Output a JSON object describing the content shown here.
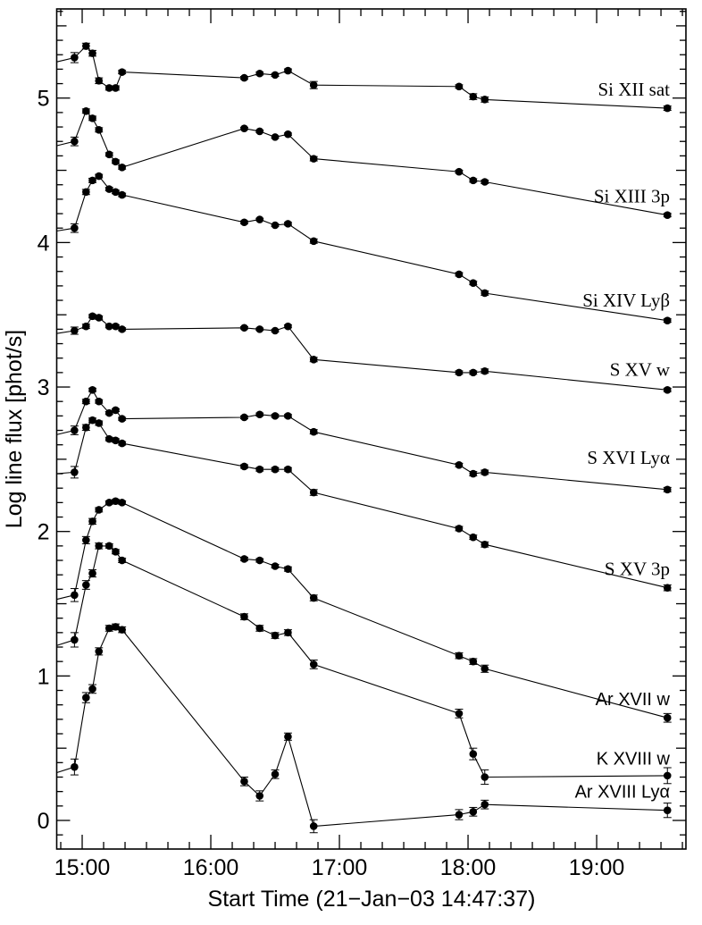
{
  "chart_data": {
    "type": "line",
    "title": "",
    "xlabel": "Start Time (21−Jan−03 14:47:37)",
    "ylabel": "Log line flux [phot/s]",
    "background_color": "#ffffff",
    "line_color": "#000000",
    "marker": "filled-circle",
    "error_bars": true,
    "grid": false,
    "legend_position": "labels-next-to-curves-right",
    "x_axis": {
      "unit": "time of day (decimal hours)",
      "range_hours": [
        14.802,
        19.694
      ],
      "minor_tick_minutes": 10,
      "ticks": [
        {
          "hour": 15,
          "label": "15:00"
        },
        {
          "hour": 16,
          "label": "16:00"
        },
        {
          "hour": 17,
          "label": "17:00"
        },
        {
          "hour": 18,
          "label": "18:00"
        },
        {
          "hour": 19,
          "label": "19:00"
        }
      ]
    },
    "y_axis": {
      "range": [
        -0.198,
        5.617
      ],
      "minor_tick": 0.1,
      "ticks": [
        {
          "value": 0,
          "label": "0"
        },
        {
          "value": 1,
          "label": "1"
        },
        {
          "value": 2,
          "label": "2"
        },
        {
          "value": 3,
          "label": "3"
        },
        {
          "value": 4,
          "label": "4"
        },
        {
          "value": 5,
          "label": "5"
        }
      ]
    },
    "x_hours": [
      14.8,
      14.94,
      15.03,
      15.08,
      15.13,
      15.21,
      15.26,
      15.31,
      16.26,
      16.38,
      16.5,
      16.6,
      16.8,
      17.93,
      18.04,
      18.13,
      19.55
    ],
    "x_times": [
      "14:48",
      "14:57",
      "15:02",
      "15:05",
      "15:08",
      "15:13",
      "15:16",
      "15:19",
      "16:16",
      "16:23",
      "16:30",
      "16:36",
      "16:48",
      "17:56",
      "18:02",
      "18:08",
      "19:33"
    ],
    "line_starts_at_frame_edge": true,
    "series": [
      {
        "name": "Si XII sat",
        "label_text": "Si XII sat",
        "label_style": "serif",
        "label_flux": 5.06,
        "values": [
          5.25,
          5.28,
          5.36,
          5.31,
          5.12,
          5.07,
          5.07,
          5.18,
          5.14,
          5.17,
          5.16,
          5.19,
          5.09,
          5.08,
          5.01,
          4.99,
          4.93
        ],
        "errors": [
          0,
          0.035,
          0.02,
          0.02,
          0.02,
          0.015,
          0.015,
          0.012,
          0.01,
          0.01,
          0.01,
          0.012,
          0.025,
          0.012,
          0.02,
          0.018,
          0.015
        ]
      },
      {
        "name": "Si XIII 3p",
        "label_text": "Si XIII 3p",
        "label_style": "serif",
        "label_flux": 4.32,
        "values": [
          4.67,
          4.7,
          4.91,
          4.86,
          4.78,
          4.61,
          4.56,
          4.52,
          4.79,
          4.77,
          4.73,
          4.75,
          4.58,
          4.49,
          4.43,
          4.42,
          4.19
        ],
        "errors": [
          0,
          0.03,
          0.015,
          0.015,
          0.015,
          0.012,
          0.012,
          0.012,
          0.008,
          0.008,
          0.008,
          0.008,
          0.015,
          0.01,
          0.012,
          0.012,
          0.012
        ]
      },
      {
        "name": "Si XIV Lyβ",
        "label_text": "Si XIV Lyβ",
        "label_style": "serif",
        "label_flux": 3.6,
        "values": [
          4.08,
          4.1,
          4.35,
          4.43,
          4.46,
          4.37,
          4.35,
          4.33,
          4.14,
          4.16,
          4.12,
          4.13,
          4.01,
          3.78,
          3.72,
          3.65,
          3.46
        ],
        "errors": [
          0,
          0.03,
          0.018,
          0.015,
          0.012,
          0.012,
          0.012,
          0.012,
          0.01,
          0.008,
          0.008,
          0.01,
          0.015,
          0.012,
          0.012,
          0.015,
          0.012
        ]
      },
      {
        "name": "S XV w",
        "label_text": "S XV w",
        "label_style": "serif",
        "label_flux": 3.12,
        "values": [
          3.37,
          3.39,
          3.42,
          3.49,
          3.48,
          3.42,
          3.42,
          3.4,
          3.41,
          3.4,
          3.39,
          3.42,
          3.19,
          3.1,
          3.1,
          3.11,
          2.98
        ],
        "errors": [
          0,
          0.025,
          0.015,
          0.012,
          0.012,
          0.01,
          0.01,
          0.01,
          0.008,
          0.008,
          0.008,
          0.01,
          0.015,
          0.012,
          0.012,
          0.015,
          0.012
        ]
      },
      {
        "name": "S XVI Lyα",
        "label_text": "S XVI Lyα",
        "label_style": "serif",
        "label_flux": 2.51,
        "values": [
          2.67,
          2.7,
          2.9,
          2.98,
          2.9,
          2.82,
          2.84,
          2.78,
          2.79,
          2.81,
          2.8,
          2.8,
          2.69,
          2.46,
          2.4,
          2.41,
          2.29
        ],
        "errors": [
          0,
          0.03,
          0.015,
          0.012,
          0.012,
          0.01,
          0.01,
          0.01,
          0.01,
          0.01,
          0.01,
          0.01,
          0.015,
          0.012,
          0.015,
          0.015,
          0.015
        ]
      },
      {
        "name": "S XV 3p",
        "label_text": "S XV 3p",
        "label_style": "serif",
        "label_flux": 1.74,
        "values": [
          2.4,
          2.41,
          2.72,
          2.77,
          2.75,
          2.64,
          2.63,
          2.61,
          2.45,
          2.43,
          2.43,
          2.43,
          2.27,
          2.02,
          1.96,
          1.91,
          1.61
        ],
        "errors": [
          0,
          0.04,
          0.02,
          0.015,
          0.015,
          0.012,
          0.012,
          0.012,
          0.012,
          0.012,
          0.012,
          0.012,
          0.02,
          0.015,
          0.015,
          0.018,
          0.02
        ]
      },
      {
        "name": "Ar XVII w",
        "label_text": "Ar XVII w",
        "label_style": "sans",
        "label_flux": 0.84,
        "values": [
          1.53,
          1.56,
          1.94,
          2.07,
          2.15,
          2.2,
          2.21,
          2.2,
          1.81,
          1.8,
          1.76,
          1.74,
          1.54,
          1.14,
          1.1,
          1.05,
          0.71
        ],
        "errors": [
          0,
          0.045,
          0.025,
          0.02,
          0.015,
          0.012,
          0.012,
          0.012,
          0.012,
          0.012,
          0.012,
          0.015,
          0.02,
          0.02,
          0.02,
          0.025,
          0.03
        ]
      },
      {
        "name": "K XVIII w",
        "label_text": "K XVIII w",
        "label_style": "sans",
        "label_flux": 0.43,
        "values": [
          1.21,
          1.25,
          1.63,
          1.71,
          1.9,
          1.9,
          1.86,
          1.8,
          1.41,
          1.33,
          1.28,
          1.3,
          1.08,
          0.74,
          0.46,
          0.3,
          0.31
        ],
        "errors": [
          0,
          0.05,
          0.03,
          0.025,
          0.02,
          0.015,
          0.015,
          0.015,
          0.02,
          0.02,
          0.02,
          0.02,
          0.03,
          0.03,
          0.04,
          0.05,
          0.055
        ]
      },
      {
        "name": "Ar XVIII Lyα",
        "label_text": "Ar XVIII Lyα",
        "label_style": "sans",
        "label_flux": 0.2,
        "values": [
          0.33,
          0.37,
          0.85,
          0.91,
          1.17,
          1.33,
          1.34,
          1.32,
          0.27,
          0.17,
          0.32,
          0.58,
          -0.04,
          0.04,
          0.06,
          0.11,
          0.07
        ],
        "errors": [
          0,
          0.055,
          0.035,
          0.03,
          0.025,
          0.02,
          0.02,
          0.02,
          0.03,
          0.035,
          0.03,
          0.025,
          0.045,
          0.035,
          0.03,
          0.03,
          0.05
        ]
      }
    ]
  }
}
